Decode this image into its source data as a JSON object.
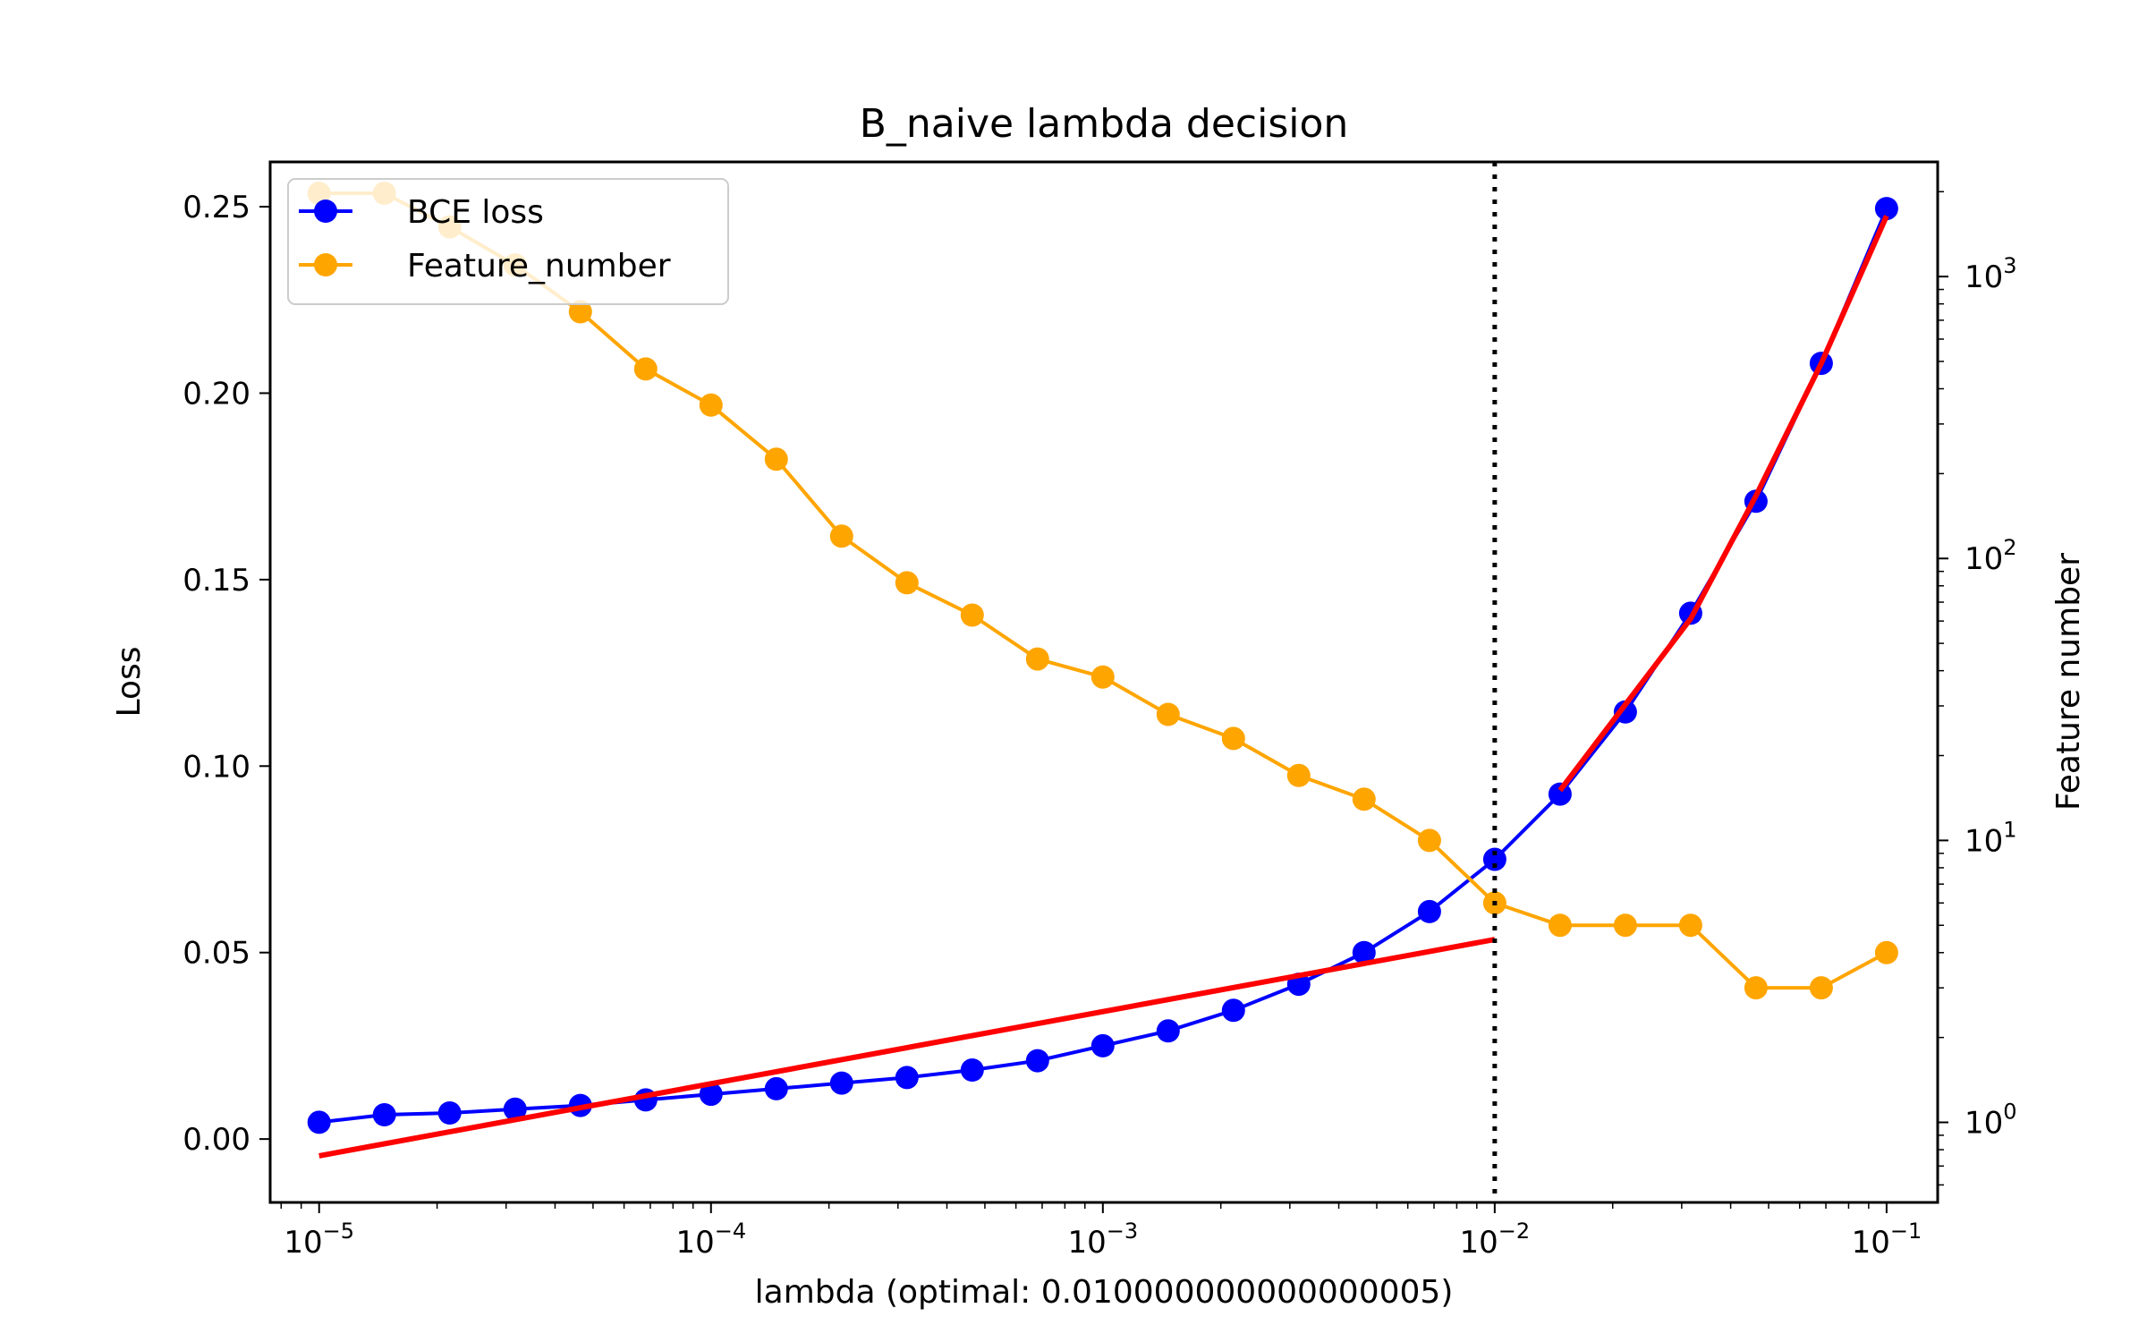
{
  "chart_data": {
    "type": "line",
    "title": "B_naive lambda decision",
    "xlabel": "lambda (optimal: 0.010000000000000005)",
    "ylabel": "Loss",
    "y2label": "Feature number",
    "xscale": "log",
    "y2scale": "log",
    "xlim": [
      7.5e-06,
      0.135
    ],
    "ylim": [
      -0.017,
      0.262
    ],
    "y2lim": [
      0.52,
      2550
    ],
    "x_ticks": [
      {
        "value": 1e-05,
        "base": "10",
        "exp": "−5"
      },
      {
        "value": 0.0001,
        "base": "10",
        "exp": "−4"
      },
      {
        "value": 0.001,
        "base": "10",
        "exp": "−3"
      },
      {
        "value": 0.01,
        "base": "10",
        "exp": "−2"
      },
      {
        "value": 0.1,
        "base": "10",
        "exp": "−1"
      }
    ],
    "y_ticks": [
      {
        "value": 0.0,
        "label": "0.00"
      },
      {
        "value": 0.05,
        "label": "0.05"
      },
      {
        "value": 0.1,
        "label": "0.10"
      },
      {
        "value": 0.15,
        "label": "0.15"
      },
      {
        "value": 0.2,
        "label": "0.20"
      },
      {
        "value": 0.25,
        "label": "0.25"
      }
    ],
    "y2_ticks": [
      {
        "value": 1,
        "base": "10",
        "exp": "0"
      },
      {
        "value": 10,
        "base": "10",
        "exp": "1"
      },
      {
        "value": 100,
        "base": "10",
        "exp": "2"
      },
      {
        "value": 1000,
        "base": "10",
        "exp": "3"
      }
    ],
    "x": [
      1e-05,
      1.4678e-05,
      2.1544e-05,
      3.1623e-05,
      4.6416e-05,
      6.8129e-05,
      0.0001,
      0.00014678,
      0.00021544,
      0.00031623,
      0.00046416,
      0.00068129,
      0.001,
      0.0014678,
      0.0021544,
      0.0031623,
      0.0046416,
      0.0068129,
      0.01,
      0.014678,
      0.021544,
      0.031623,
      0.046416,
      0.068129,
      0.1
    ],
    "series": [
      {
        "name": "BCE loss",
        "axis": "left",
        "color": "#0000ff",
        "values": [
          0.0045,
          0.0065,
          0.007,
          0.008,
          0.009,
          0.0105,
          0.012,
          0.0135,
          0.015,
          0.0165,
          0.0185,
          0.021,
          0.025,
          0.029,
          0.0345,
          0.0415,
          0.05,
          0.061,
          0.075,
          0.0925,
          0.1145,
          0.141,
          0.171,
          0.208,
          0.2495
        ]
      },
      {
        "name": "Feature_number",
        "axis": "right",
        "color": "#ffa500",
        "values": [
          1975,
          1975,
          1500,
          1100,
          750,
          470,
          350,
          225,
          120,
          82,
          63,
          44,
          38,
          28,
          23,
          17,
          14,
          10,
          6,
          5,
          5,
          5,
          3,
          3,
          4
        ]
      }
    ],
    "fit_lines": [
      {
        "color": "#ff0000",
        "points": [
          [
            1e-05,
            -0.0045
          ],
          [
            0.01,
            0.0535
          ]
        ]
      },
      {
        "color": "#ff0000",
        "points": [
          [
            0.014678,
            0.0935
          ],
          [
            0.021544,
            0.1165
          ],
          [
            0.031623,
            0.1395
          ],
          [
            0.046416,
            0.1725
          ],
          [
            0.068129,
            0.208
          ],
          [
            0.1,
            0.2475
          ]
        ]
      }
    ],
    "vline": {
      "x": 0.01,
      "style": "dotted",
      "color": "#000000"
    },
    "legend": {
      "placement": "upper-left"
    },
    "grid": false
  }
}
